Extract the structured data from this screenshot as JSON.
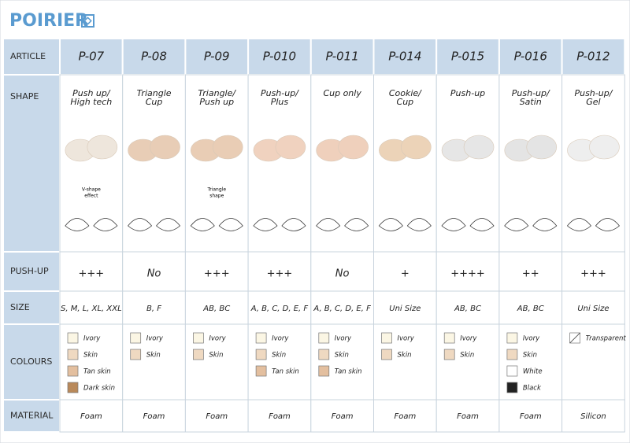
{
  "brand": "POIRIER",
  "row_headers": [
    "ARTICLE",
    "SHAPE",
    "PUSH-UP",
    "SIZE",
    "COLOURS",
    "MATERIAL"
  ],
  "products": [
    {
      "article": "P-07",
      "shape": [
        "Push up/",
        "High tech"
      ],
      "note": [
        "V-shape",
        "effect"
      ],
      "push_up": "+++",
      "size": "S, M, L, XL, XXL",
      "colours": [
        "Ivory",
        "Skin",
        "Tan skin",
        "Dark skin"
      ],
      "material": "Foam"
    },
    {
      "article": "P-08",
      "shape": [
        "Triangle",
        "Cup"
      ],
      "push_up": "No",
      "size": "B, F",
      "colours": [
        "Ivory",
        "Skin"
      ],
      "material": "Foam"
    },
    {
      "article": "P-09",
      "shape": [
        "Triangle/",
        "Push up"
      ],
      "note": [
        "Triangle",
        "shape"
      ],
      "push_up": "+++",
      "size": "AB, BC",
      "colours": [
        "Ivory",
        "Skin"
      ],
      "material": "Foam"
    },
    {
      "article": "P-010",
      "shape": [
        "Push-up/",
        "Plus"
      ],
      "push_up": "+++",
      "size": "A, B, C, D, E, F",
      "colours": [
        "Ivory",
        "Skin",
        "Tan skin"
      ],
      "material": "Foam"
    },
    {
      "article": "P-011",
      "shape": [
        "Cup only"
      ],
      "push_up": "No",
      "size": "A, B, C, D, E, F",
      "colours": [
        "Ivory",
        "Skin",
        "Tan skin"
      ],
      "material": "Foam"
    },
    {
      "article": "P-014",
      "shape": [
        "Cookie/",
        "Cup"
      ],
      "push_up": "+",
      "size": "Uni Size",
      "colours": [
        "Ivory",
        "Skin"
      ],
      "material": "Foam"
    },
    {
      "article": "P-015",
      "shape": [
        "Push-up"
      ],
      "push_up": "++++",
      "size": "AB, BC",
      "colours": [
        "Ivory",
        "Skin"
      ],
      "material": "Foam"
    },
    {
      "article": "P-016",
      "shape": [
        "Push-up/",
        "Satin"
      ],
      "push_up": "++",
      "size": "AB, BC",
      "colours": [
        "Ivory",
        "Skin",
        "White",
        "Black"
      ],
      "material": "Foam"
    },
    {
      "article": "P-012",
      "shape": [
        "Push-up/",
        "Gel"
      ],
      "push_up": "+++",
      "size": "Uni Size",
      "colours": [
        "Transparent"
      ],
      "material": "Silicon"
    }
  ]
}
